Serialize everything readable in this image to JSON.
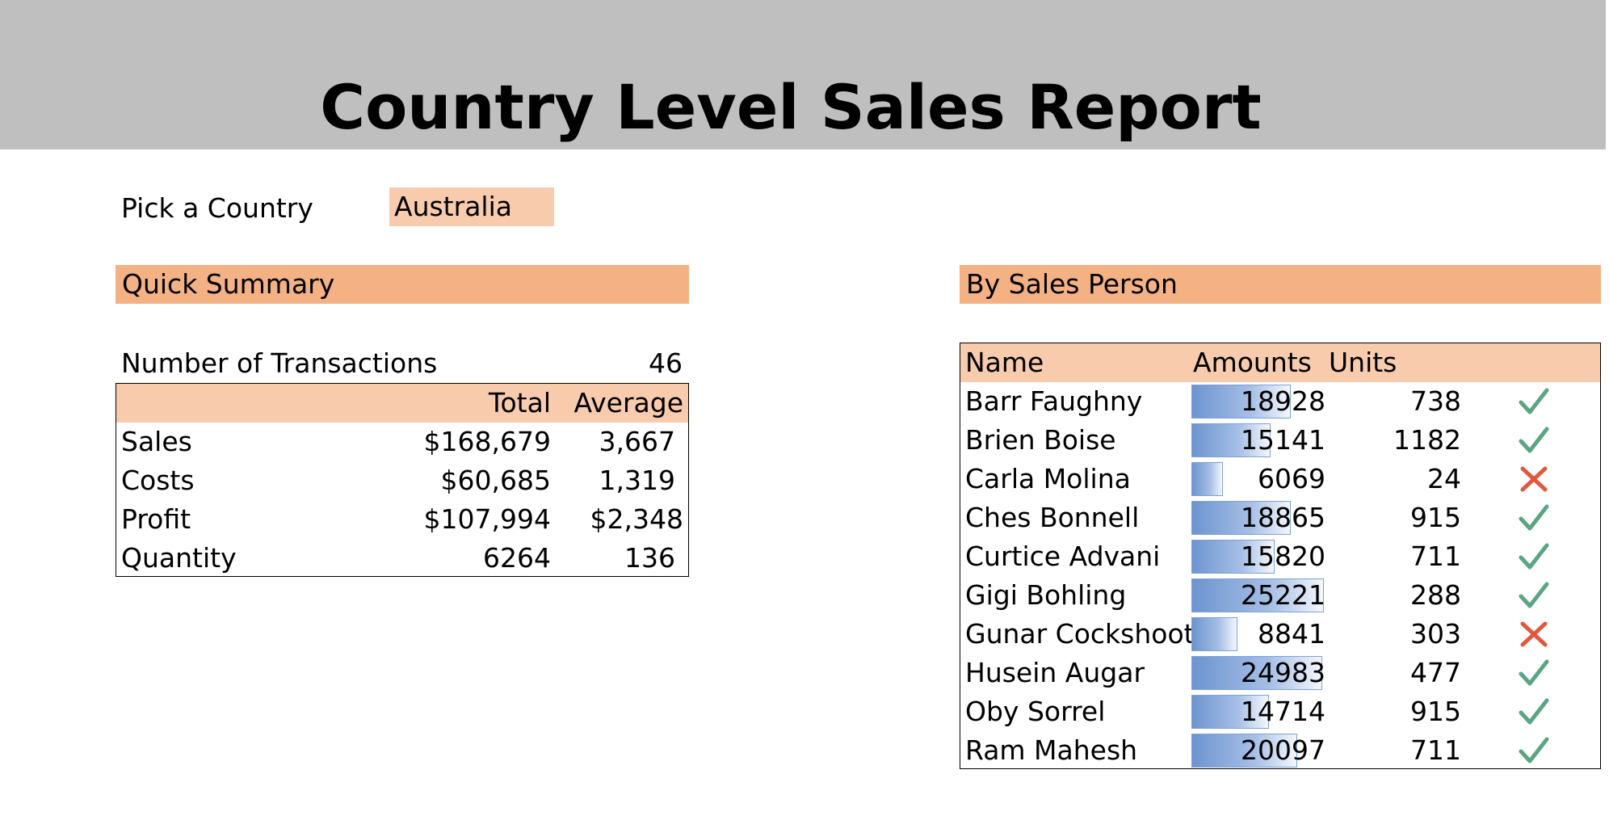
{
  "report": {
    "title": "Country Level Sales Report"
  },
  "picker": {
    "label": "Pick a Country",
    "value": "Australia"
  },
  "quick_summary": {
    "title": "Quick Summary",
    "transactions_label": "Number of Transactions",
    "transactions_value": "46",
    "columns": {
      "total": "Total",
      "average": "Average"
    },
    "rows": [
      {
        "label": "Sales",
        "total": "$168,679",
        "average": "3,667"
      },
      {
        "label": "Costs",
        "total": "$60,685",
        "average": "1,319"
      },
      {
        "label": "Profit",
        "total": "$107,994",
        "average": "$2,348"
      },
      {
        "label": "Quantity",
        "total": "6264",
        "average": "136"
      }
    ]
  },
  "by_sales_person": {
    "title": "By Sales Person",
    "columns": {
      "name": "Name",
      "amounts": "Amounts",
      "units": "Units"
    },
    "bar_max": 25221,
    "colors": {
      "bar": "#6d94cf",
      "check": "#5aa582",
      "cross": "#e0593e"
    },
    "rows": [
      {
        "name": "Barr Faughny",
        "amount": "18928",
        "units": "738",
        "status": "check-icon"
      },
      {
        "name": "Brien Boise",
        "amount": "15141",
        "units": "1182",
        "status": "check-icon"
      },
      {
        "name": "Carla Molina",
        "amount": "6069",
        "units": "24",
        "status": "cross-icon"
      },
      {
        "name": "Ches Bonnell",
        "amount": "18865",
        "units": "915",
        "status": "check-icon"
      },
      {
        "name": "Curtice Advani",
        "amount": "15820",
        "units": "711",
        "status": "check-icon"
      },
      {
        "name": "Gigi Bohling",
        "amount": "25221",
        "units": "288",
        "status": "check-icon"
      },
      {
        "name": "Gunar Cockshoot",
        "amount": "8841",
        "units": "303",
        "status": "cross-icon"
      },
      {
        "name": "Husein Augar",
        "amount": "24983",
        "units": "477",
        "status": "check-icon"
      },
      {
        "name": "Oby Sorrel",
        "amount": "14714",
        "units": "915",
        "status": "check-icon"
      },
      {
        "name": "Ram Mahesh",
        "amount": "20097",
        "units": "711",
        "status": "check-icon"
      }
    ]
  }
}
